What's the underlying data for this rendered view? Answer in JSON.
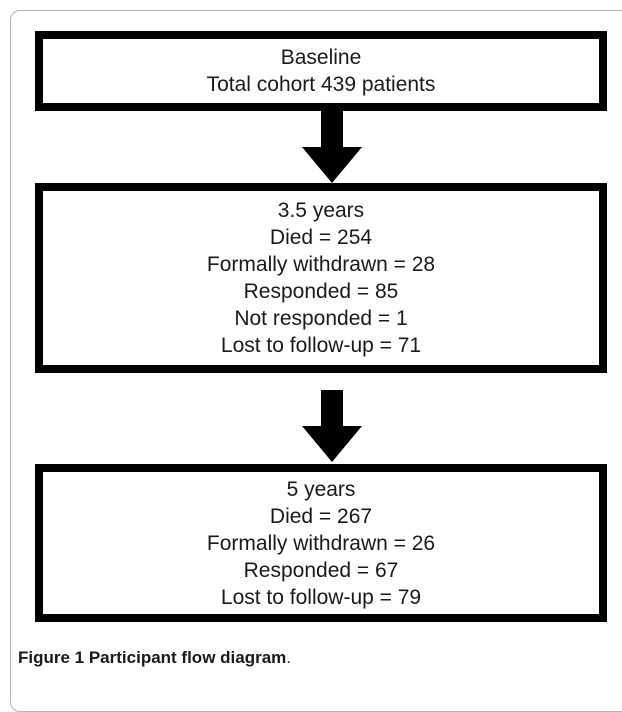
{
  "diagram": {
    "boxes": [
      {
        "lines": [
          "Baseline",
          "Total cohort 439 patients"
        ]
      },
      {
        "lines": [
          "3.5 years",
          "Died = 254",
          "Formally withdrawn = 28",
          "Responded = 85",
          "Not responded = 1",
          "Lost to follow-up = 71"
        ]
      },
      {
        "lines": [
          "5 years",
          "Died = 267",
          "Formally withdrawn = 26",
          "Responded = 67",
          "Lost to follow-up = 79"
        ]
      }
    ]
  },
  "caption": {
    "label": "Figure 1 Participant flow diagram",
    "suffix": "."
  }
}
